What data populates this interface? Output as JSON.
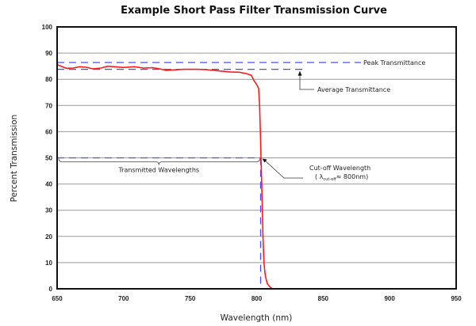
{
  "chart_data": {
    "type": "line",
    "title": "Example Short Pass Filter Transmission Curve",
    "xlabel": "Wavelength (nm)",
    "ylabel": "Percent Transmission",
    "xlim": [
      650,
      950
    ],
    "ylim": [
      0,
      100
    ],
    "xticks": [
      650,
      700,
      750,
      800,
      850,
      900,
      950
    ],
    "yticks": [
      0,
      10,
      20,
      30,
      40,
      50,
      60,
      70,
      80,
      90,
      100
    ],
    "grid": "horizontal",
    "colors": {
      "curve": "#ff1a1a",
      "reference_lines": "#4a4aff",
      "grid": "#999999",
      "axes": "#111111"
    },
    "series": [
      {
        "x": [
          650,
          653,
          657,
          662,
          667,
          672,
          677,
          683,
          688,
          695,
          700,
          708,
          715,
          722,
          727,
          732,
          738,
          745,
          755,
          762,
          770,
          780,
          787,
          792,
          796,
          798,
          800,
          801.5,
          802.2,
          802.8,
          803.3,
          803.8,
          804.3,
          804.8,
          805.5,
          806.5,
          808,
          810,
          812,
          950
        ],
        "y": [
          85.6,
          85,
          84.2,
          84.3,
          84.8,
          84.6,
          84,
          84.3,
          85,
          84.7,
          84.5,
          84.8,
          84.3,
          84.4,
          84,
          83.4,
          83.6,
          83.8,
          83.8,
          83.7,
          83.3,
          82.8,
          82.7,
          82.2,
          81.5,
          79.5,
          78,
          76.5,
          70,
          60,
          50,
          40,
          30,
          20,
          10,
          5,
          2,
          0.7,
          0,
          0
        ]
      }
    ],
    "reference_lines": {
      "peak_transmittance": 86.4,
      "average_transmittance": 83.8,
      "half_max": 50,
      "cutoff_wavelength": 803
    },
    "annotations": {
      "peak": "Peak Transmittance",
      "average": "Average Transmittance",
      "transmitted": "Transmitted Wavelengths",
      "cutoff_title": "Cut-off Wavelength",
      "cutoff_prefix": "( λ",
      "cutoff_sub": "cut-off",
      "cutoff_value": "≈ 800nm)"
    }
  }
}
